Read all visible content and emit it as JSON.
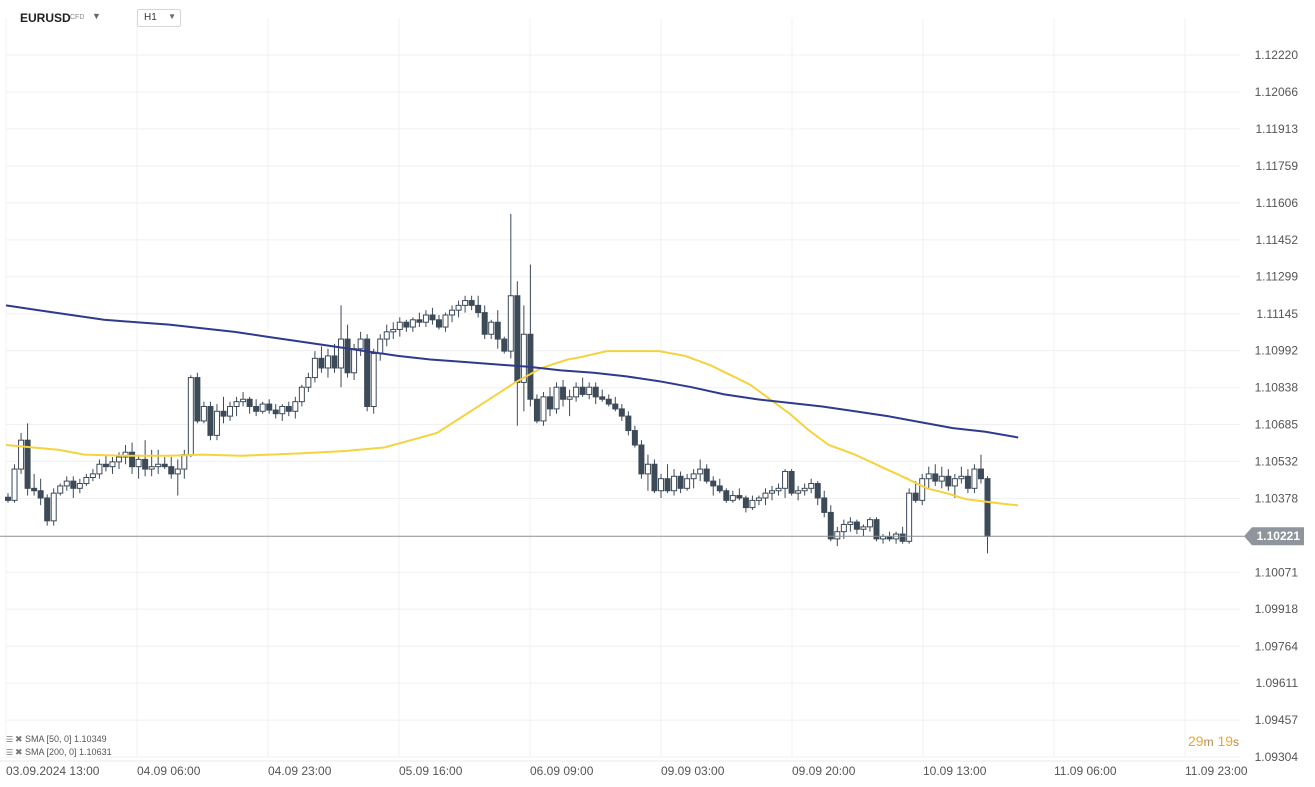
{
  "header": {
    "symbol": "EURUSD",
    "instrument_type": "CFD",
    "symbol_caret": "▼",
    "timeframe": "H1",
    "timeframe_caret": "▼"
  },
  "legend": [
    {
      "label": "SMA [50, 0]",
      "value": "1.10349",
      "color": "#f5d33f"
    },
    {
      "label": "SMA [200, 0]",
      "value": "1.10631",
      "color": "#2e3a8c"
    }
  ],
  "countdown": {
    "minutes": "29",
    "m_unit": "m",
    "seconds": "19",
    "s_unit": "s"
  },
  "chart_data": {
    "type": "candlestick",
    "ylim": [
      1.09304,
      1.12374
    ],
    "y_ticks": [
      1.1222,
      1.12066,
      1.11913,
      1.11759,
      1.11606,
      1.11452,
      1.11299,
      1.11145,
      1.10992,
      1.10838,
      1.10685,
      1.10532,
      1.10378,
      1.10071,
      1.09918,
      1.09764,
      1.09611,
      1.09457,
      1.09304
    ],
    "y_tick_labels": [
      "1.12220",
      "1.12066",
      "1.11913",
      "1.11759",
      "1.11606",
      "1.11452",
      "1.11299",
      "1.11145",
      "1.10992",
      "1.10838",
      "1.10685",
      "1.10532",
      "1.10378",
      "1.10071",
      "1.09918",
      "1.09764",
      "1.09611",
      "1.09457",
      "1.09304"
    ],
    "x_tick_labels": [
      "03.09.2024 13:00",
      "04.09 06:00",
      "04.09 23:00",
      "05.09 16:00",
      "06.09 09:00",
      "09.09 03:00",
      "09.09 20:00",
      "10.09 13:00",
      "11.09 06:00",
      "11.09 23:00"
    ],
    "current_price": 1.10221,
    "current_price_label": "1.10221",
    "sma50_path": [
      [
        0,
        1.106
      ],
      [
        8,
        1.1058
      ],
      [
        12,
        1.1056
      ],
      [
        18,
        1.10555
      ],
      [
        25,
        1.10555
      ],
      [
        30,
        1.1056
      ],
      [
        36,
        1.10555
      ],
      [
        45,
        1.10565
      ],
      [
        52,
        1.10575
      ],
      [
        58,
        1.1059
      ],
      [
        62,
        1.1062
      ],
      [
        66,
        1.1065
      ],
      [
        70,
        1.1072
      ],
      [
        74,
        1.1079
      ],
      [
        78,
        1.1086
      ],
      [
        82,
        1.1092
      ],
      [
        86,
        1.10955
      ],
      [
        88,
        1.10965
      ],
      [
        92,
        1.1099
      ],
      [
        96,
        1.1099
      ],
      [
        100,
        1.1099
      ],
      [
        104,
        1.1097
      ],
      [
        108,
        1.1093
      ],
      [
        111,
        1.1089
      ],
      [
        114,
        1.1085
      ],
      [
        117,
        1.1079
      ],
      [
        120,
        1.1073
      ],
      [
        123,
        1.1066
      ],
      [
        126,
        1.106
      ],
      [
        130,
        1.1056
      ],
      [
        134,
        1.1051
      ],
      [
        138,
        1.1046
      ],
      [
        141,
        1.1042
      ],
      [
        144,
        1.104
      ],
      [
        147,
        1.10375
      ],
      [
        150,
        1.10365
      ],
      [
        153,
        1.10355
      ],
      [
        155,
        1.10349
      ]
    ],
    "sma200_path": [
      [
        0,
        1.1118
      ],
      [
        5,
        1.1116
      ],
      [
        10,
        1.1114
      ],
      [
        15,
        1.1112
      ],
      [
        20,
        1.1111
      ],
      [
        25,
        1.111
      ],
      [
        30,
        1.11085
      ],
      [
        35,
        1.1107
      ],
      [
        40,
        1.1105
      ],
      [
        45,
        1.1103
      ],
      [
        50,
        1.1101
      ],
      [
        55,
        1.1099
      ],
      [
        60,
        1.1097
      ],
      [
        65,
        1.10955
      ],
      [
        70,
        1.10945
      ],
      [
        75,
        1.10935
      ],
      [
        80,
        1.10925
      ],
      [
        85,
        1.1091
      ],
      [
        90,
        1.109
      ],
      [
        95,
        1.10885
      ],
      [
        100,
        1.10865
      ],
      [
        105,
        1.1084
      ],
      [
        110,
        1.1081
      ],
      [
        115,
        1.1079
      ],
      [
        120,
        1.10775
      ],
      [
        125,
        1.1076
      ],
      [
        130,
        1.1074
      ],
      [
        135,
        1.1072
      ],
      [
        140,
        1.10695
      ],
      [
        145,
        1.1067
      ],
      [
        150,
        1.10655
      ],
      [
        155,
        1.10631
      ]
    ],
    "candles": [
      [
        1.10383,
        1.104,
        1.1036,
        1.1037
      ],
      [
        1.1037,
        1.1052,
        1.1036,
        1.105
      ],
      [
        1.105,
        1.1065,
        1.1048,
        1.1062
      ],
      [
        1.1062,
        1.1069,
        1.1039,
        1.1042
      ],
      [
        1.1042,
        1.1048,
        1.1039,
        1.1041
      ],
      [
        1.1041,
        1.1046,
        1.1035,
        1.1038
      ],
      [
        1.1038,
        1.10395,
        1.10265,
        1.10285
      ],
      [
        1.10285,
        1.1042,
        1.10265,
        1.104
      ],
      [
        1.104,
        1.1044,
        1.1039,
        1.1043
      ],
      [
        1.1043,
        1.1047,
        1.1041,
        1.1045
      ],
      [
        1.1045,
        1.1047,
        1.1038,
        1.1042
      ],
      [
        1.1042,
        1.1046,
        1.104,
        1.1044
      ],
      [
        1.1044,
        1.1048,
        1.1043,
        1.10465
      ],
      [
        1.10465,
        1.105,
        1.1045,
        1.1048
      ],
      [
        1.1048,
        1.1054,
        1.1046,
        1.1052
      ],
      [
        1.1052,
        1.1056,
        1.1049,
        1.1051
      ],
      [
        1.1051,
        1.1055,
        1.1048,
        1.1053
      ],
      [
        1.1053,
        1.1057,
        1.105,
        1.1055
      ],
      [
        1.1055,
        1.106,
        1.1052,
        1.1057
      ],
      [
        1.1057,
        1.1061,
        1.1048,
        1.1051
      ],
      [
        1.1051,
        1.1056,
        1.1046,
        1.1054
      ],
      [
        1.1054,
        1.1062,
        1.1047,
        1.105
      ],
      [
        1.105,
        1.1058,
        1.1047,
        1.1051
      ],
      [
        1.1051,
        1.1058,
        1.1048,
        1.1052
      ],
      [
        1.1052,
        1.1055,
        1.105,
        1.1051
      ],
      [
        1.1051,
        1.1055,
        1.1046,
        1.1048
      ],
      [
        1.1048,
        1.1054,
        1.1039,
        1.105
      ],
      [
        1.105,
        1.1058,
        1.1046,
        1.1056
      ],
      [
        1.1056,
        1.1089,
        1.1055,
        1.1088
      ],
      [
        1.1088,
        1.109,
        1.1069,
        1.107
      ],
      [
        1.107,
        1.1078,
        1.1069,
        1.1076
      ],
      [
        1.1076,
        1.1078,
        1.1062,
        1.1064
      ],
      [
        1.1064,
        1.1077,
        1.1062,
        1.1074
      ],
      [
        1.1074,
        1.108,
        1.1069,
        1.1072
      ],
      [
        1.1072,
        1.1078,
        1.107,
        1.1076
      ],
      [
        1.1076,
        1.108,
        1.1072,
        1.1078
      ],
      [
        1.1078,
        1.1082,
        1.1076,
        1.1079
      ],
      [
        1.1079,
        1.108,
        1.1073,
        1.1076
      ],
      [
        1.1076,
        1.1079,
        1.1072,
        1.1074
      ],
      [
        1.1074,
        1.1078,
        1.1073,
        1.1077
      ],
      [
        1.1077,
        1.1079,
        1.1073,
        1.10745
      ],
      [
        1.10745,
        1.1077,
        1.1071,
        1.1073
      ],
      [
        1.1073,
        1.1077,
        1.107,
        1.1076
      ],
      [
        1.1076,
        1.1078,
        1.1072,
        1.1074
      ],
      [
        1.1074,
        1.108,
        1.1071,
        1.1078
      ],
      [
        1.1078,
        1.1085,
        1.1076,
        1.1084
      ],
      [
        1.1084,
        1.109,
        1.1082,
        1.1088
      ],
      [
        1.1088,
        1.1099,
        1.1086,
        1.1096
      ],
      [
        1.1096,
        1.1101,
        1.109,
        1.1092
      ],
      [
        1.1092,
        1.11,
        1.1088,
        1.1097
      ],
      [
        1.1097,
        1.1102,
        1.109,
        1.1092
      ],
      [
        1.1092,
        1.1118,
        1.1084,
        1.1104
      ],
      [
        1.1104,
        1.111,
        1.1088,
        1.109
      ],
      [
        1.109,
        1.1102,
        1.1087,
        1.11
      ],
      [
        1.11,
        1.1107,
        1.1097,
        1.1104
      ],
      [
        1.1104,
        1.1106,
        1.1074,
        1.1076
      ],
      [
        1.1076,
        1.11,
        1.1073,
        1.1098
      ],
      [
        1.1098,
        1.1106,
        1.1095,
        1.1104
      ],
      [
        1.1104,
        1.111,
        1.1101,
        1.1107
      ],
      [
        1.1107,
        1.1111,
        1.1104,
        1.1108
      ],
      [
        1.1108,
        1.1113,
        1.1105,
        1.1111
      ],
      [
        1.1111,
        1.1112,
        1.1107,
        1.1109
      ],
      [
        1.1109,
        1.1113,
        1.1107,
        1.1112
      ],
      [
        1.1112,
        1.1115,
        1.1109,
        1.1111
      ],
      [
        1.1111,
        1.1116,
        1.1109,
        1.1114
      ],
      [
        1.1114,
        1.1117,
        1.111,
        1.1112
      ],
      [
        1.1112,
        1.1114,
        1.1108,
        1.1109
      ],
      [
        1.1109,
        1.1115,
        1.1107,
        1.1114
      ],
      [
        1.1114,
        1.1118,
        1.1111,
        1.1116
      ],
      [
        1.1116,
        1.112,
        1.1113,
        1.1118
      ],
      [
        1.1118,
        1.1122,
        1.1115,
        1.112
      ],
      [
        1.112,
        1.1122,
        1.1116,
        1.1118
      ],
      [
        1.1118,
        1.1122,
        1.1113,
        1.1115
      ],
      [
        1.1115,
        1.1118,
        1.1104,
        1.1106
      ],
      [
        1.1106,
        1.1112,
        1.1104,
        1.1111
      ],
      [
        1.1111,
        1.1116,
        1.11,
        1.1104
      ],
      [
        1.1104,
        1.1105,
        1.1098,
        1.1099
      ],
      [
        1.1099,
        1.1156,
        1.1096,
        1.1122
      ],
      [
        1.1122,
        1.1128,
        1.1068,
        1.1086
      ],
      [
        1.1086,
        1.1118,
        1.1074,
        1.1106
      ],
      [
        1.1106,
        1.1135,
        1.1076,
        1.1079
      ],
      [
        1.1079,
        1.1081,
        1.1069,
        1.107
      ],
      [
        1.107,
        1.1082,
        1.1068,
        1.108
      ],
      [
        1.108,
        1.1084,
        1.1072,
        1.1075
      ],
      [
        1.1075,
        1.1086,
        1.1073,
        1.1084
      ],
      [
        1.1084,
        1.1087,
        1.1076,
        1.1079
      ],
      [
        1.1079,
        1.1083,
        1.1072,
        1.108
      ],
      [
        1.108,
        1.1086,
        1.1078,
        1.1084
      ],
      [
        1.1084,
        1.1088,
        1.108,
        1.1081
      ],
      [
        1.1081,
        1.1086,
        1.1079,
        1.1084
      ],
      [
        1.1084,
        1.1086,
        1.1077,
        1.108
      ],
      [
        1.108,
        1.1083,
        1.1078,
        1.1079
      ],
      [
        1.1079,
        1.1081,
        1.1076,
        1.1077
      ],
      [
        1.1077,
        1.108,
        1.1074,
        1.1075
      ],
      [
        1.1075,
        1.1077,
        1.107,
        1.1072
      ],
      [
        1.1072,
        1.1074,
        1.1064,
        1.1066
      ],
      [
        1.1066,
        1.1068,
        1.1059,
        1.106
      ],
      [
        1.106,
        1.1062,
        1.1046,
        1.1048
      ],
      [
        1.1048,
        1.1056,
        1.1041,
        1.1052
      ],
      [
        1.1052,
        1.1054,
        1.104,
        1.1041
      ],
      [
        1.1041,
        1.1048,
        1.1038,
        1.1046
      ],
      [
        1.1046,
        1.1052,
        1.104,
        1.1041
      ],
      [
        1.1041,
        1.105,
        1.1039,
        1.1047
      ],
      [
        1.1047,
        1.1049,
        1.104,
        1.1042
      ],
      [
        1.1042,
        1.1048,
        1.1041,
        1.1046
      ],
      [
        1.1046,
        1.105,
        1.1042,
        1.1048
      ],
      [
        1.1048,
        1.1054,
        1.1045,
        1.105
      ],
      [
        1.105,
        1.1052,
        1.1044,
        1.1045
      ],
      [
        1.1045,
        1.1047,
        1.1039,
        1.1043
      ],
      [
        1.1043,
        1.1046,
        1.104,
        1.1041
      ],
      [
        1.1041,
        1.1042,
        1.1036,
        1.1037
      ],
      [
        1.1037,
        1.1041,
        1.1036,
        1.1039
      ],
      [
        1.1039,
        1.1042,
        1.1037,
        1.1038
      ],
      [
        1.1038,
        1.1039,
        1.1032,
        1.1034
      ],
      [
        1.1034,
        1.1039,
        1.1033,
        1.1037
      ],
      [
        1.1037,
        1.1039,
        1.1035,
        1.1038
      ],
      [
        1.1038,
        1.1042,
        1.1035,
        1.104
      ],
      [
        1.104,
        1.1043,
        1.1037,
        1.1041
      ],
      [
        1.1041,
        1.1044,
        1.1039,
        1.1042
      ],
      [
        1.1042,
        1.105,
        1.1038,
        1.1049
      ],
      [
        1.1049,
        1.105,
        1.1039,
        1.104
      ],
      [
        1.104,
        1.1043,
        1.1037,
        1.1041
      ],
      [
        1.1041,
        1.1044,
        1.1039,
        1.1042
      ],
      [
        1.1042,
        1.1046,
        1.104,
        1.1044
      ],
      [
        1.1044,
        1.1045,
        1.1035,
        1.1038
      ],
      [
        1.1038,
        1.1041,
        1.103,
        1.1032
      ],
      [
        1.1032,
        1.1035,
        1.102,
        1.1021
      ],
      [
        1.1021,
        1.1026,
        1.1018,
        1.1024
      ],
      [
        1.1024,
        1.1029,
        1.1021,
        1.1027
      ],
      [
        1.1027,
        1.103,
        1.1024,
        1.1028
      ],
      [
        1.1028,
        1.1029,
        1.1023,
        1.1025
      ],
      [
        1.1025,
        1.1027,
        1.1022,
        1.1026
      ],
      [
        1.1026,
        1.103,
        1.1024,
        1.1029
      ],
      [
        1.1029,
        1.103,
        1.102,
        1.1021
      ],
      [
        1.1021,
        1.1023,
        1.1019,
        1.1022
      ],
      [
        1.1022,
        1.1024,
        1.102,
        1.1021
      ],
      [
        1.1021,
        1.1024,
        1.1019,
        1.1023
      ],
      [
        1.1023,
        1.1026,
        1.1019,
        1.102
      ],
      [
        1.102,
        1.1042,
        1.1019,
        1.104
      ],
      [
        1.104,
        1.1045,
        1.1036,
        1.1037
      ],
      [
        1.1037,
        1.1048,
        1.1035,
        1.1046
      ],
      [
        1.1046,
        1.1051,
        1.1042,
        1.1048
      ],
      [
        1.1048,
        1.1052,
        1.1043,
        1.1045
      ],
      [
        1.1045,
        1.1051,
        1.1042,
        1.1047
      ],
      [
        1.1047,
        1.105,
        1.1041,
        1.1043
      ],
      [
        1.1043,
        1.1048,
        1.1038,
        1.1046
      ],
      [
        1.1046,
        1.1051,
        1.1044,
        1.1047
      ],
      [
        1.1047,
        1.105,
        1.104,
        1.1042
      ],
      [
        1.1042,
        1.1052,
        1.104,
        1.105
      ],
      [
        1.105,
        1.1056,
        1.1044,
        1.1046
      ],
      [
        1.1046,
        1.1047,
        1.1015,
        1.10221
      ]
    ]
  }
}
